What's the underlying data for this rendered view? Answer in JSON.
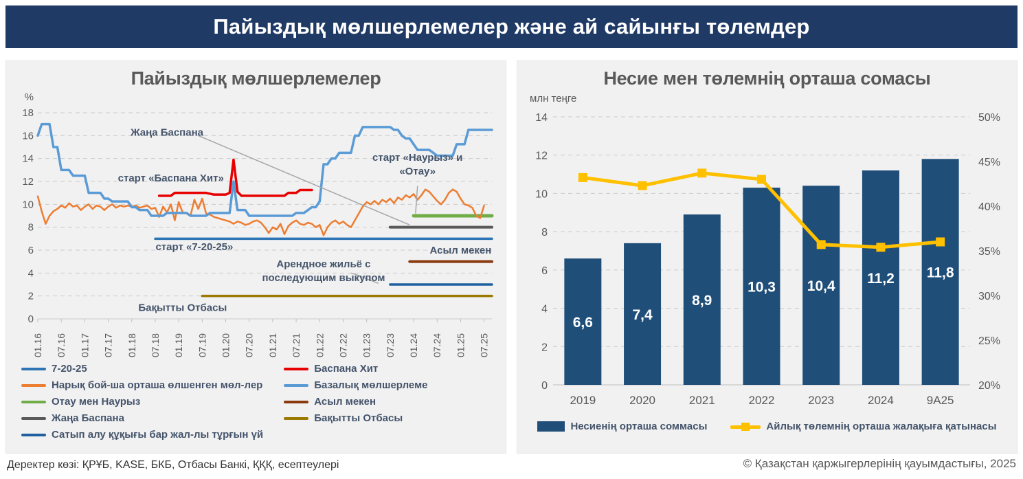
{
  "banner": {
    "title": "Пайыздық мөлшерлемелер және ай сайынғы төлемдер"
  },
  "footer": {
    "source": "Деректер көзі: ҚРҰБ, KASE, БКБ, Отбасы Банкі, ҚҚҚ, есептеулері",
    "copyright": "© Қазақстан қаржыгерлерінің қауымдастығы, 2025"
  },
  "colors": {
    "banner": "#203A66",
    "panel": "#F1F1F2",
    "grid": "#CBCBCB",
    "axis_line": "#BFBFBF",
    "axis_text": "#595959",
    "title_text": "#595959",
    "annotation_text": "#44546A",
    "leader": "#A6A6A6",
    "bar": "#1F4E79",
    "payment_line": "#FFC000",
    "bar_label": "#FFFFFF"
  },
  "chart_data": [
    {
      "id": "rates",
      "type": "line",
      "title": "Пайыздық мөлшерлемелер",
      "ylabel": "%",
      "ylim": [
        0,
        18
      ],
      "ytick_step": 2,
      "grid": "dashed horizontal",
      "x_axis_note": "monthly data, Jan 2016 — Sep 2025, ticks every 6 months",
      "x_months_total": 116,
      "x_tick_labels": [
        "01.16",
        "07.16",
        "01.17",
        "07.17",
        "01.18",
        "07.18",
        "01.19",
        "07.19",
        "01.20",
        "07.20",
        "01.21",
        "07.21",
        "01.22",
        "07.22",
        "01.23",
        "07.23",
        "01.24",
        "07.24",
        "01.25",
        "07.25"
      ],
      "series": [
        {
          "name": "7-20-25",
          "color": "#2E75B6",
          "width": 3.5,
          "points": [
            [
              30,
              7
            ],
            [
              116,
              7
            ]
          ]
        },
        {
          "name": "Сатып алу құқығы бар жал-лы тұрғын үй",
          "color": "#2060A0",
          "width": 3.5,
          "points": [
            [
              90,
              3
            ],
            [
              116,
              3
            ]
          ]
        },
        {
          "name": "Бақытты Отбасы",
          "color": "#9C7A00",
          "width": 3.5,
          "points": [
            [
              42,
              2
            ],
            [
              116,
              2
            ]
          ]
        },
        {
          "name": "Асыл мекен",
          "color": "#8B3A0E",
          "width": 4,
          "points": [
            [
              95,
              5
            ],
            [
              116,
              5
            ]
          ]
        },
        {
          "name": "Жаңа Баспана",
          "color": "#595959",
          "width": 4,
          "points": [
            [
              90,
              8
            ],
            [
              116,
              8
            ]
          ]
        },
        {
          "name": "Отау мен Наурыз",
          "color": "#70AD47",
          "width": 5,
          "points": [
            [
              96,
              9
            ],
            [
              116,
              9
            ]
          ]
        },
        {
          "name": "Нарық бой-ша орташа өлшенген мөл-лер",
          "color": "#ED7D31",
          "width": 2.5,
          "points": [
            [
              0,
              10.7
            ],
            [
              1,
              9.4
            ],
            [
              2,
              8.3
            ],
            [
              3,
              9.0
            ],
            [
              4,
              9.4
            ],
            [
              5,
              9.6
            ],
            [
              6,
              9.9
            ],
            [
              7,
              9.7
            ],
            [
              8,
              10.1
            ],
            [
              9,
              9.8
            ],
            [
              10,
              9.9
            ],
            [
              11,
              9.5
            ],
            [
              12,
              9.8
            ],
            [
              13,
              10.0
            ],
            [
              14,
              9.6
            ],
            [
              15,
              9.9
            ],
            [
              16,
              9.8
            ],
            [
              17,
              9.5
            ],
            [
              18,
              9.8
            ],
            [
              19,
              10.0
            ],
            [
              20,
              9.7
            ],
            [
              21,
              9.9
            ],
            [
              22,
              9.8
            ],
            [
              23,
              9.9
            ],
            [
              24,
              9.8
            ],
            [
              25,
              9.9
            ],
            [
              26,
              9.7
            ],
            [
              27,
              9.8
            ],
            [
              28,
              9.9
            ],
            [
              29,
              9.6
            ],
            [
              30,
              9.7
            ],
            [
              31,
              8.9
            ],
            [
              32,
              9.8
            ],
            [
              33,
              9.3
            ],
            [
              34,
              10.0
            ],
            [
              35,
              8.6
            ],
            [
              36,
              10.2
            ],
            [
              37,
              9.3
            ],
            [
              38,
              9.2
            ],
            [
              39,
              9.0
            ],
            [
              40,
              10.4
            ],
            [
              41,
              9.6
            ],
            [
              42,
              10.5
            ],
            [
              43,
              9.2
            ],
            [
              44,
              9.1
            ],
            [
              45,
              8.9
            ],
            [
              46,
              8.8
            ],
            [
              47,
              8.7
            ],
            [
              48,
              8.6
            ],
            [
              49,
              8.5
            ],
            [
              50,
              8.3
            ],
            [
              51,
              8.5
            ],
            [
              52,
              8.4
            ],
            [
              53,
              8.2
            ],
            [
              54,
              8.3
            ],
            [
              55,
              8.5
            ],
            [
              56,
              8.6
            ],
            [
              57,
              8.4
            ],
            [
              58,
              8.0
            ],
            [
              59,
              7.5
            ],
            [
              60,
              8.0
            ],
            [
              61,
              7.8
            ],
            [
              62,
              8.3
            ],
            [
              63,
              7.4
            ],
            [
              64,
              8.1
            ],
            [
              65,
              8.4
            ],
            [
              66,
              8.6
            ],
            [
              67,
              8.3
            ],
            [
              68,
              8.2
            ],
            [
              69,
              8.4
            ],
            [
              70,
              8.3
            ],
            [
              71,
              8.0
            ],
            [
              72,
              8.2
            ],
            [
              73,
              7.3
            ],
            [
              74,
              8.0
            ],
            [
              75,
              8.4
            ],
            [
              76,
              8.6
            ],
            [
              77,
              8.3
            ],
            [
              78,
              8.5
            ],
            [
              79,
              8.2
            ],
            [
              80,
              8.0
            ],
            [
              81,
              8.6
            ],
            [
              82,
              9.2
            ],
            [
              83,
              9.8
            ],
            [
              84,
              10.2
            ],
            [
              85,
              10.0
            ],
            [
              86,
              10.3
            ],
            [
              87,
              10.0
            ],
            [
              88,
              10.4
            ],
            [
              89,
              10.2
            ],
            [
              90,
              10.5
            ],
            [
              91,
              10.1
            ],
            [
              92,
              10.6
            ],
            [
              93,
              10.4
            ],
            [
              94,
              10.8
            ],
            [
              95,
              10.6
            ],
            [
              96,
              10.9
            ],
            [
              97,
              10.4
            ],
            [
              98,
              10.8
            ],
            [
              99,
              11.3
            ],
            [
              100,
              11.1
            ],
            [
              101,
              10.7
            ],
            [
              102,
              10.3
            ],
            [
              103,
              10.0
            ],
            [
              104,
              10.4
            ],
            [
              105,
              11.0
            ],
            [
              106,
              11.3
            ],
            [
              107,
              11.1
            ],
            [
              108,
              10.5
            ],
            [
              109,
              10.0
            ],
            [
              110,
              9.9
            ],
            [
              111,
              9.7
            ],
            [
              112,
              9.0
            ],
            [
              113,
              8.8
            ],
            [
              114,
              9.9
            ]
          ]
        },
        {
          "name": "Базалық мөлшерлеме",
          "color": "#5B9BD5",
          "width": 3.5,
          "points": [
            [
              0,
              16
            ],
            [
              1,
              17
            ],
            [
              3,
              17
            ],
            [
              4,
              15
            ],
            [
              5,
              15
            ],
            [
              6,
              13
            ],
            [
              8,
              13
            ],
            [
              9,
              12.5
            ],
            [
              12,
              12.5
            ],
            [
              13,
              11
            ],
            [
              16,
              11
            ],
            [
              17,
              10.5
            ],
            [
              18,
              10.5
            ],
            [
              19,
              10.25
            ],
            [
              23,
              10.25
            ],
            [
              24,
              9.75
            ],
            [
              25,
              9.75
            ],
            [
              26,
              9.5
            ],
            [
              28,
              9.5
            ],
            [
              29,
              9
            ],
            [
              32,
              9
            ],
            [
              33,
              9.25
            ],
            [
              38,
              9.25
            ],
            [
              39,
              9
            ],
            [
              43,
              9
            ],
            [
              44,
              9.25
            ],
            [
              49,
              9.25
            ],
            [
              50,
              12
            ],
            [
              51,
              9.5
            ],
            [
              53,
              9.5
            ],
            [
              54,
              9
            ],
            [
              65,
              9
            ],
            [
              66,
              9.25
            ],
            [
              68,
              9.25
            ],
            [
              69,
              9.5
            ],
            [
              70,
              9.75
            ],
            [
              71,
              9.75
            ],
            [
              72,
              10.25
            ],
            [
              73,
              13.5
            ],
            [
              74,
              13.5
            ],
            [
              75,
              14
            ],
            [
              76,
              14
            ],
            [
              77,
              14.5
            ],
            [
              80,
              14.5
            ],
            [
              81,
              16
            ],
            [
              82,
              16
            ],
            [
              83,
              16.75
            ],
            [
              90,
              16.75
            ],
            [
              91,
              16.5
            ],
            [
              92,
              16.5
            ],
            [
              93,
              16
            ],
            [
              94,
              15.75
            ],
            [
              95,
              15.75
            ],
            [
              96,
              15.25
            ],
            [
              97,
              14.75
            ],
            [
              100,
              14.75
            ],
            [
              101,
              14.5
            ],
            [
              102,
              14.25
            ],
            [
              106,
              14.25
            ],
            [
              107,
              15.25
            ],
            [
              109,
              15.25
            ],
            [
              110,
              16.5
            ],
            [
              116,
              16.5
            ]
          ]
        },
        {
          "name": "Баспана Хит",
          "color": "#E60000",
          "width": 3.5,
          "points": [
            [
              31,
              10.75
            ],
            [
              34,
              10.75
            ],
            [
              35,
              11
            ],
            [
              43,
              11
            ],
            [
              45,
              10.85
            ],
            [
              48,
              10.85
            ],
            [
              49,
              11
            ],
            [
              50,
              13.9
            ],
            [
              51,
              11.1
            ],
            [
              52,
              10.75
            ],
            [
              63,
              10.75
            ],
            [
              64,
              11
            ],
            [
              66,
              11
            ],
            [
              67,
              11.25
            ],
            [
              70,
              11.25
            ]
          ]
        }
      ],
      "legend": {
        "left_column": [
          "7-20-25",
          "Нарық бой-ша орташа өлшенген мөл-лер",
          "Отау мен Наурыз",
          "Жаңа Баспана",
          "Сатып алу құқығы бар жал-лы тұрғын үй"
        ],
        "right_column": [
          "Баспана Хит",
          "Базалық мөлшерлеме",
          "Асыл мекен",
          "Бақытты Отбасы"
        ]
      },
      "annotations": [
        {
          "lines": [
            "Жаңа Баспана"
          ],
          "x": 33,
          "y": 16.0,
          "leader": [
            [
              41,
              16.0
            ],
            [
              95,
              8.2
            ]
          ]
        },
        {
          "lines": [
            "старт «Баспана Хит»"
          ],
          "x": 34,
          "y": 12.0
        },
        {
          "lines": [
            "старт «Наурыз» и",
            "«Отау»"
          ],
          "x": 97,
          "y": 13.8,
          "leader": [
            [
              97,
              11.6
            ],
            [
              96.5,
              9.2
            ]
          ]
        },
        {
          "lines": [
            "старт «7-20-25»"
          ],
          "x": 40,
          "y": 6.0
        },
        {
          "lines": [
            "Асыл мекен"
          ],
          "x": 108,
          "y": 5.7
        },
        {
          "lines": [
            "Арендное жильё с",
            "последующим выкупом"
          ],
          "x": 73,
          "y": 4.5,
          "leader": [
            [
              80,
              4.0
            ],
            [
              81,
              3.9
            ],
            [
              87,
              3.1
            ]
          ]
        },
        {
          "lines": [
            "Бақытты Отбасы"
          ],
          "x": 37,
          "y": 0.7
        }
      ]
    },
    {
      "id": "amounts",
      "type": "bar+line",
      "title": "Несие мен төлемнің орташа сомасы",
      "ylabel_left": "млн теңге",
      "ylim_left": [
        0,
        14
      ],
      "ytick_step_left": 2,
      "ylim_right": [
        20,
        50
      ],
      "ytick_step_right": 5,
      "right_tick_suffix": "%",
      "grid": "dashed horizontal at left ticks",
      "categories": [
        "2019",
        "2020",
        "2021",
        "2022",
        "2023",
        "2024",
        "9A25"
      ],
      "bars": {
        "name": "Несиенің орташа соммасы",
        "color": "#1F4E79",
        "values": [
          6.6,
          7.4,
          8.9,
          10.3,
          10.4,
          11.2,
          11.8
        ],
        "labels": [
          "6,6",
          "7,4",
          "8,9",
          "10,3",
          "10,4",
          "11,2",
          "11,8"
        ]
      },
      "line": {
        "name": "Айлық төлемнің орташа жалақыға қатынасы",
        "color": "#FFC000",
        "marker": "square",
        "values_pct": [
          43.2,
          42.3,
          43.7,
          43.0,
          35.7,
          35.4,
          36.0
        ]
      }
    }
  ]
}
